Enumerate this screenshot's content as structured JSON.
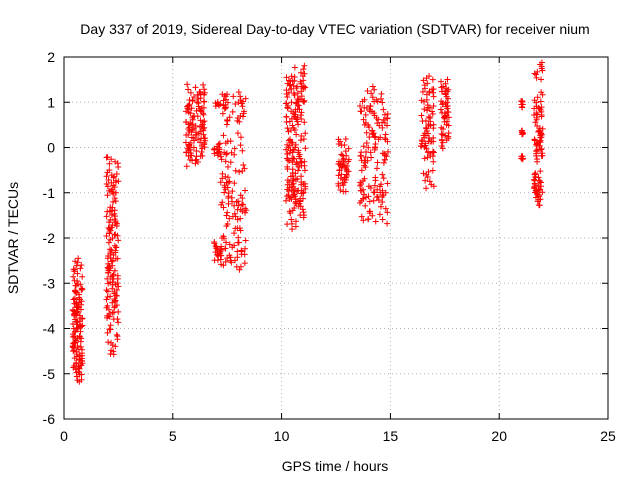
{
  "chart_data": {
    "type": "scatter",
    "title": "Day 337 of 2019, Sidereal Day-to-day VTEC variation (SDTVAR) for receiver nium",
    "xlabel": "GPS time / hours",
    "ylabel": "SDTVAR / TECUs",
    "xlim": [
      0,
      25
    ],
    "ylim": [
      -6,
      2
    ],
    "xticks": [
      0,
      5,
      10,
      15,
      20,
      25
    ],
    "yticks": [
      -6,
      -5,
      -4,
      -3,
      -2,
      -1,
      0,
      1,
      2
    ],
    "grid": true,
    "marker": "+",
    "color": "#ff0000",
    "series": [
      {
        "name": "SDTVAR",
        "segments": [
          {
            "x0": 0.4,
            "x1": 0.85,
            "points": [
              [
                -2.45,
                -2.7
              ],
              [
                -2.7,
                -3.2
              ],
              [
                -3.0,
                -3.8
              ],
              [
                -3.5,
                -4.5
              ],
              [
                -4.2,
                -5.2
              ],
              [
                -4.6,
                -4.9
              ],
              [
                -4.0,
                -3.5
              ],
              [
                -3.3,
                -3.6
              ],
              [
                -3.8,
                -4.3
              ],
              [
                -4.4,
                -5.0
              ]
            ]
          },
          {
            "x0": 1.95,
            "x1": 2.5,
            "points": [
              [
                -4.6,
                -4.0
              ],
              [
                -3.9,
                -3.5
              ],
              [
                -3.4,
                -2.6
              ],
              [
                -2.5,
                -2.2
              ],
              [
                -2.0,
                -1.6
              ],
              [
                -1.5,
                -1.3
              ],
              [
                -1.2,
                -0.9
              ],
              [
                -0.8,
                -0.5
              ],
              [
                -0.4,
                -0.2
              ],
              [
                -0.6,
                -1.0
              ],
              [
                -1.4,
                -2.7
              ],
              [
                -2.6,
                -3.8
              ]
            ]
          },
          {
            "x0": 5.6,
            "x1": 6.5,
            "points": [
              [
                -0.25,
                0.1
              ],
              [
                0.2,
                0.6
              ],
              [
                0.7,
                1.3
              ],
              [
                1.2,
                0.8
              ],
              [
                0.5,
                0.0
              ],
              [
                0.1,
                -0.4
              ],
              [
                -0.3,
                0.3
              ],
              [
                0.4,
                1.0
              ],
              [
                1.1,
                1.4
              ],
              [
                0.9,
                0.2
              ]
            ]
          },
          {
            "x0": 6.9,
            "x1": 7.2,
            "points": [
              [
                -2.5,
                -2.2
              ],
              [
                -2.1,
                -2.4
              ],
              [
                -0.2,
                0.1
              ],
              [
                0.9,
                1.0
              ],
              [
                0.0,
                -0.1
              ]
            ]
          },
          {
            "x0": 7.2,
            "x1": 8.4,
            "points": [
              [
                1.2,
                0.9
              ],
              [
                0.8,
                0.5
              ],
              [
                0.3,
                -0.2
              ],
              [
                -0.5,
                -0.9
              ],
              [
                -1.2,
                -1.6
              ],
              [
                -1.8,
                -2.3
              ],
              [
                -2.5,
                -2.7
              ],
              [
                -2.6,
                -2.2
              ],
              [
                -1.8,
                -1.0
              ],
              [
                -0.5,
                -0.1
              ],
              [
                0.6,
                1.1
              ],
              [
                1.2,
                0.9
              ],
              [
                -0.7,
                -1.3
              ],
              [
                -2.0,
                -2.5
              ]
            ]
          },
          {
            "x0": 10.2,
            "x1": 11.1,
            "points": [
              [
                -1.8,
                -1.4
              ],
              [
                -1.2,
                -0.8
              ],
              [
                -0.5,
                0.0
              ],
              [
                0.3,
                0.8
              ],
              [
                1.0,
                1.5
              ],
              [
                1.4,
                0.6
              ],
              [
                0.2,
                -0.4
              ],
              [
                -0.6,
                -1.2
              ],
              [
                -1.3,
                -0.2
              ],
              [
                0.4,
                1.0
              ],
              [
                1.3,
                1.8
              ],
              [
                1.6,
                0.9
              ],
              [
                0.3,
                -0.3
              ],
              [
                -0.7,
                -1.5
              ]
            ]
          },
          {
            "x0": 12.6,
            "x1": 13.1,
            "points": [
              [
                -1.0,
                -0.6
              ],
              [
                -0.5,
                -0.1
              ],
              [
                0.0,
                0.2
              ],
              [
                -0.3,
                -0.8
              ],
              [
                -0.6,
                -0.2
              ]
            ]
          },
          {
            "x0": 13.6,
            "x1": 14.9,
            "points": [
              [
                1.35,
                0.9
              ],
              [
                0.6,
                0.2
              ],
              [
                -0.1,
                -0.5
              ],
              [
                -0.8,
                -1.2
              ],
              [
                -1.6,
                -1.0
              ],
              [
                -0.4,
                0.3
              ],
              [
                0.7,
                1.1
              ],
              [
                0.9,
                0.5
              ],
              [
                0.1,
                -0.3
              ],
              [
                -0.7,
                -1.2
              ],
              [
                -1.7,
                -1.4
              ],
              [
                -1.1,
                -0.6
              ],
              [
                0.2,
                0.8
              ]
            ]
          },
          {
            "x0": 16.4,
            "x1": 17.0,
            "points": [
              [
                -0.9,
                -0.5
              ],
              [
                -0.3,
                0.2
              ],
              [
                0.4,
                0.9
              ],
              [
                1.2,
                1.6
              ],
              [
                1.3,
                0.8
              ],
              [
                0.3,
                -0.2
              ],
              [
                0.1,
                0.6
              ]
            ]
          },
          {
            "x0": 17.3,
            "x1": 17.7,
            "points": [
              [
                1.5,
                1.2
              ],
              [
                1.0,
                0.6
              ],
              [
                0.3,
                0.0
              ],
              [
                0.2,
                0.8
              ],
              [
                1.3,
                0.9
              ]
            ]
          },
          {
            "x0": 21.0,
            "x1": 21.1,
            "points": [
              [
                1.05,
                0.9
              ],
              [
                0.35,
                0.3
              ],
              [
                -0.2,
                -0.25
              ]
            ]
          },
          {
            "x0": 21.6,
            "x1": 22.0,
            "points": [
              [
                1.9,
                1.5
              ],
              [
                1.2,
                0.7
              ],
              [
                0.2,
                -0.3
              ],
              [
                -0.6,
                -1.0
              ],
              [
                -1.3,
                -0.8
              ],
              [
                -0.2,
                0.4
              ],
              [
                0.9,
                0.1
              ],
              [
                -0.5,
                -1.1
              ]
            ]
          }
        ]
      }
    ]
  }
}
